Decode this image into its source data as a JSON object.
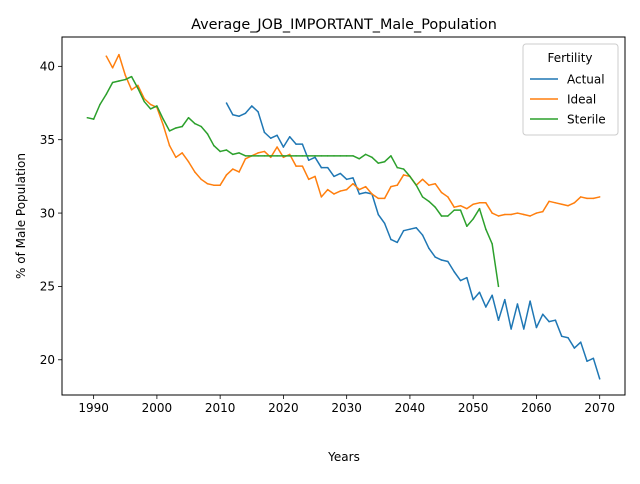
{
  "chart_data": {
    "type": "line",
    "title": "Average_JOB_IMPORTANT_Male_Population",
    "xlabel": "Years",
    "ylabel": "% of Male Population",
    "xlim": [
      1985,
      2074
    ],
    "ylim": [
      17.6,
      42.0
    ],
    "xticks": [
      1990,
      2000,
      2010,
      2020,
      2030,
      2040,
      2050,
      2060,
      2070
    ],
    "yticks": [
      20,
      25,
      30,
      35,
      40
    ],
    "grid": false,
    "legend": {
      "title": "Fertility",
      "placement": "top-right"
    },
    "series": [
      {
        "name": "Actual",
        "color": "#1f77b4",
        "points": [
          [
            2011,
            37.5
          ],
          [
            2012,
            36.7
          ],
          [
            2013,
            36.6
          ],
          [
            2014,
            36.8
          ],
          [
            2015,
            37.3
          ],
          [
            2016,
            36.9
          ],
          [
            2017,
            35.5
          ],
          [
            2018,
            35.1
          ],
          [
            2019,
            35.3
          ],
          [
            2020,
            34.5
          ],
          [
            2021,
            35.2
          ],
          [
            2022,
            34.7
          ],
          [
            2023,
            34.7
          ],
          [
            2024,
            33.6
          ],
          [
            2025,
            33.8
          ],
          [
            2026,
            33.1
          ],
          [
            2027,
            33.1
          ],
          [
            2028,
            32.5
          ],
          [
            2029,
            32.7
          ],
          [
            2030,
            32.3
          ],
          [
            2031,
            32.4
          ],
          [
            2032,
            31.3
          ],
          [
            2033,
            31.4
          ],
          [
            2034,
            31.3
          ],
          [
            2035,
            29.9
          ],
          [
            2036,
            29.3
          ],
          [
            2037,
            28.2
          ],
          [
            2038,
            28.0
          ],
          [
            2039,
            28.8
          ],
          [
            2040,
            28.9
          ],
          [
            2041,
            29.0
          ],
          [
            2042,
            28.5
          ],
          [
            2043,
            27.6
          ],
          [
            2044,
            27.0
          ],
          [
            2045,
            26.8
          ],
          [
            2046,
            26.7
          ],
          [
            2047,
            26.0
          ],
          [
            2048,
            25.4
          ],
          [
            2049,
            25.6
          ],
          [
            2050,
            24.1
          ],
          [
            2051,
            24.6
          ],
          [
            2052,
            23.6
          ],
          [
            2053,
            24.4
          ],
          [
            2054,
            22.7
          ],
          [
            2055,
            24.1
          ],
          [
            2056,
            22.1
          ],
          [
            2057,
            23.8
          ],
          [
            2058,
            22.1
          ],
          [
            2059,
            24.0
          ],
          [
            2060,
            22.2
          ],
          [
            2061,
            23.1
          ],
          [
            2062,
            22.6
          ],
          [
            2063,
            22.7
          ],
          [
            2064,
            21.6
          ],
          [
            2065,
            21.5
          ],
          [
            2066,
            20.8
          ],
          [
            2067,
            21.2
          ],
          [
            2068,
            19.9
          ],
          [
            2069,
            20.1
          ],
          [
            2070,
            18.7
          ]
        ]
      },
      {
        "name": "Ideal",
        "color": "#ff7f0e",
        "points": [
          [
            1992,
            40.7
          ],
          [
            1993,
            39.9
          ],
          [
            1994,
            40.8
          ],
          [
            1995,
            39.4
          ],
          [
            1996,
            38.4
          ],
          [
            1997,
            38.7
          ],
          [
            1998,
            37.8
          ],
          [
            1999,
            37.4
          ],
          [
            2000,
            37.2
          ],
          [
            2001,
            36.0
          ],
          [
            2002,
            34.6
          ],
          [
            2003,
            33.8
          ],
          [
            2004,
            34.1
          ],
          [
            2005,
            33.5
          ],
          [
            2006,
            32.8
          ],
          [
            2007,
            32.3
          ],
          [
            2008,
            32.0
          ],
          [
            2009,
            31.9
          ],
          [
            2010,
            31.9
          ],
          [
            2011,
            32.6
          ],
          [
            2012,
            33.0
          ],
          [
            2013,
            32.8
          ],
          [
            2014,
            33.7
          ],
          [
            2015,
            33.9
          ],
          [
            2016,
            34.1
          ],
          [
            2017,
            34.2
          ],
          [
            2018,
            33.8
          ],
          [
            2019,
            34.5
          ],
          [
            2020,
            33.8
          ],
          [
            2021,
            34.0
          ],
          [
            2022,
            33.2
          ],
          [
            2023,
            33.2
          ],
          [
            2024,
            32.3
          ],
          [
            2025,
            32.5
          ],
          [
            2026,
            31.1
          ],
          [
            2027,
            31.6
          ],
          [
            2028,
            31.3
          ],
          [
            2029,
            31.5
          ],
          [
            2030,
            31.6
          ],
          [
            2031,
            32.0
          ],
          [
            2032,
            31.6
          ],
          [
            2033,
            31.8
          ],
          [
            2034,
            31.3
          ],
          [
            2035,
            31.0
          ],
          [
            2036,
            31.0
          ],
          [
            2037,
            31.8
          ],
          [
            2038,
            31.9
          ],
          [
            2039,
            32.6
          ],
          [
            2040,
            32.5
          ],
          [
            2041,
            31.9
          ],
          [
            2042,
            32.3
          ],
          [
            2043,
            31.9
          ],
          [
            2044,
            32.0
          ],
          [
            2045,
            31.4
          ],
          [
            2046,
            31.1
          ],
          [
            2047,
            30.4
          ],
          [
            2048,
            30.5
          ],
          [
            2049,
            30.3
          ],
          [
            2050,
            30.6
          ],
          [
            2051,
            30.7
          ],
          [
            2052,
            30.7
          ],
          [
            2053,
            30.0
          ],
          [
            2054,
            29.8
          ],
          [
            2055,
            29.9
          ],
          [
            2056,
            29.9
          ],
          [
            2057,
            30.0
          ],
          [
            2058,
            29.9
          ],
          [
            2059,
            29.8
          ],
          [
            2060,
            30.0
          ],
          [
            2061,
            30.1
          ],
          [
            2062,
            30.8
          ],
          [
            2063,
            30.7
          ],
          [
            2064,
            30.6
          ],
          [
            2065,
            30.5
          ],
          [
            2066,
            30.7
          ],
          [
            2067,
            31.1
          ],
          [
            2068,
            31.0
          ],
          [
            2069,
            31.0
          ],
          [
            2070,
            31.1
          ]
        ]
      },
      {
        "name": "Sterile",
        "color": "#2ca02c",
        "points": [
          [
            1989,
            36.5
          ],
          [
            1990,
            36.4
          ],
          [
            1991,
            37.4
          ],
          [
            1992,
            38.1
          ],
          [
            1993,
            38.9
          ],
          [
            1994,
            39.0
          ],
          [
            1995,
            39.1
          ],
          [
            1996,
            39.3
          ],
          [
            1997,
            38.5
          ],
          [
            1998,
            37.6
          ],
          [
            1999,
            37.1
          ],
          [
            2000,
            37.3
          ],
          [
            2001,
            36.4
          ],
          [
            2002,
            35.6
          ],
          [
            2003,
            35.8
          ],
          [
            2004,
            35.9
          ],
          [
            2005,
            36.5
          ],
          [
            2006,
            36.1
          ],
          [
            2007,
            35.9
          ],
          [
            2008,
            35.4
          ],
          [
            2009,
            34.6
          ],
          [
            2010,
            34.2
          ],
          [
            2011,
            34.3
          ],
          [
            2012,
            34.0
          ],
          [
            2013,
            34.1
          ],
          [
            2014,
            33.9
          ],
          [
            2015,
            33.9
          ],
          [
            2016,
            33.9
          ],
          [
            2017,
            33.9
          ],
          [
            2018,
            33.9
          ],
          [
            2019,
            33.9
          ],
          [
            2020,
            33.9
          ],
          [
            2021,
            33.9
          ],
          [
            2022,
            33.9
          ],
          [
            2023,
            33.9
          ],
          [
            2024,
            33.9
          ],
          [
            2025,
            33.9
          ],
          [
            2026,
            33.9
          ],
          [
            2027,
            33.9
          ],
          [
            2028,
            33.9
          ],
          [
            2029,
            33.9
          ],
          [
            2030,
            33.9
          ],
          [
            2031,
            33.9
          ],
          [
            2032,
            33.7
          ],
          [
            2033,
            34.0
          ],
          [
            2034,
            33.8
          ],
          [
            2035,
            33.4
          ],
          [
            2036,
            33.5
          ],
          [
            2037,
            33.9
          ],
          [
            2038,
            33.1
          ],
          [
            2039,
            33.0
          ],
          [
            2040,
            32.5
          ],
          [
            2041,
            31.9
          ],
          [
            2042,
            31.1
          ],
          [
            2043,
            30.8
          ],
          [
            2044,
            30.4
          ],
          [
            2045,
            29.8
          ],
          [
            2046,
            29.8
          ],
          [
            2047,
            30.2
          ],
          [
            2048,
            30.2
          ],
          [
            2049,
            29.1
          ],
          [
            2050,
            29.6
          ],
          [
            2051,
            30.3
          ],
          [
            2052,
            28.9
          ],
          [
            2053,
            27.9
          ],
          [
            2054,
            25.0
          ]
        ]
      }
    ]
  }
}
